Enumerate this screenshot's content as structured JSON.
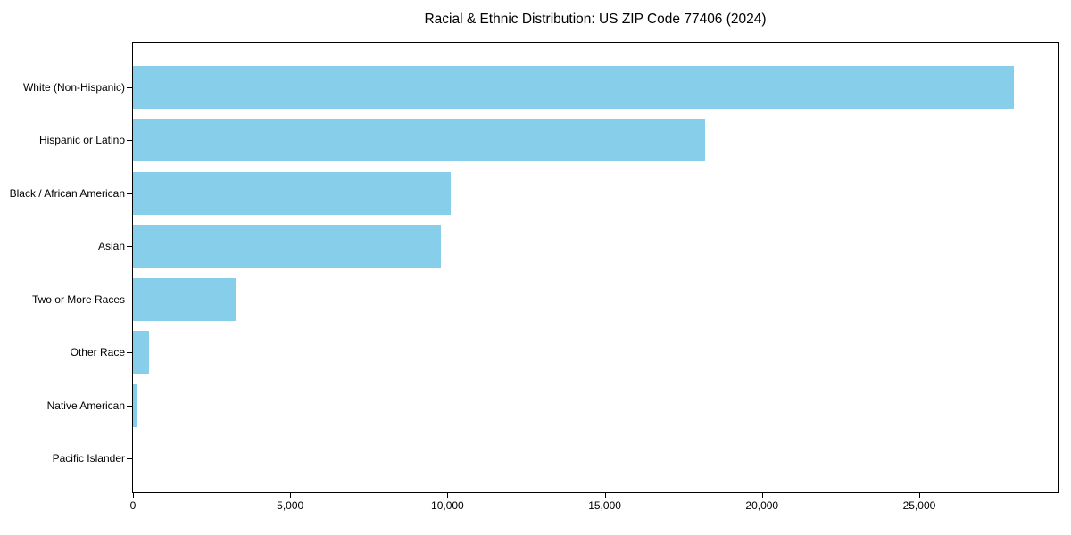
{
  "title": "Racial & Ethnic Distribution: US ZIP Code 77406 (2024)",
  "chart_data": {
    "type": "bar",
    "orientation": "horizontal",
    "title": "Racial & Ethnic Distribution: US ZIP Code 77406 (2024)",
    "xlabel": "",
    "ylabel": "",
    "categories": [
      "White (Non-Hispanic)",
      "Hispanic or Latino",
      "Black / African American",
      "Asian",
      "Two or More Races",
      "Other Race",
      "Native American",
      "Pacific Islander"
    ],
    "values": [
      28000,
      18200,
      10100,
      9800,
      3250,
      500,
      100,
      0
    ],
    "xlim": [
      0,
      29400
    ],
    "xtick_values": [
      0,
      5000,
      10000,
      15000,
      20000,
      25000
    ],
    "xtick_labels": [
      "0",
      "5,000",
      "10,000",
      "15,000",
      "20,000",
      "25,000"
    ],
    "bar_color": "#87CEEB",
    "frame_color": "#000000",
    "grid": false,
    "legend": null
  }
}
